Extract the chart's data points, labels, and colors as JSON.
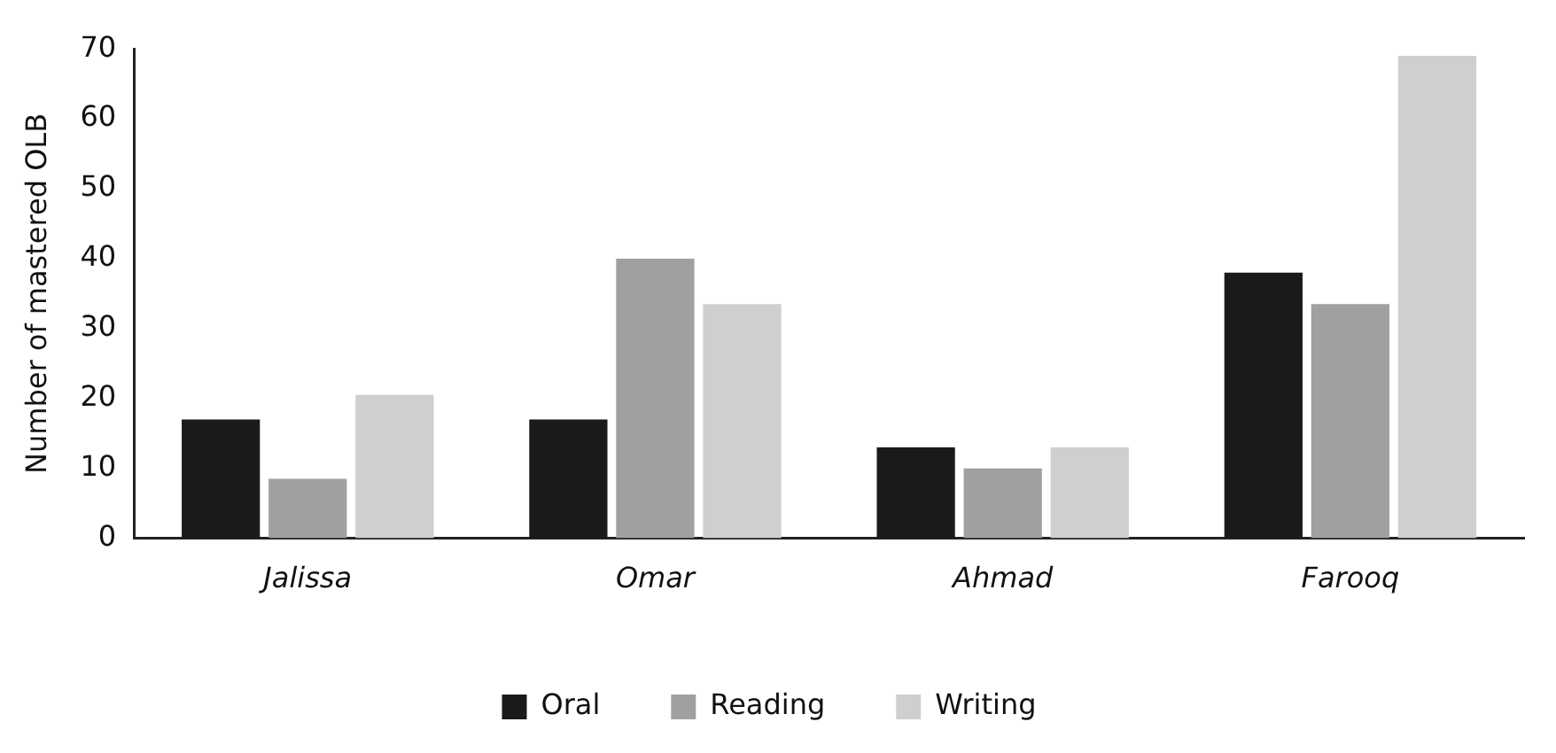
{
  "chart_data": {
    "type": "bar",
    "ylabel": "Number of mastered OLB",
    "categories": [
      "Jalissa",
      "Omar",
      "Ahmad",
      "Farooq"
    ],
    "series": [
      {
        "name": "Oral",
        "color": "#1a1a1a",
        "values": [
          17,
          17,
          13,
          38
        ]
      },
      {
        "name": "Reading",
        "color": "#a0a0a0",
        "values": [
          8.5,
          40,
          10,
          33.5
        ]
      },
      {
        "name": "Writing",
        "color": "#cfcfcf",
        "values": [
          20.5,
          33.5,
          13,
          69
        ]
      }
    ],
    "ylim": [
      0,
      70
    ],
    "yticks": [
      0,
      10,
      20,
      30,
      40,
      50,
      60,
      70
    ],
    "grid": false,
    "legend": "bottom"
  }
}
